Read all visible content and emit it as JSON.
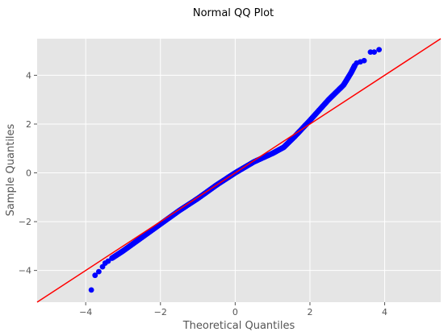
{
  "chart_data": {
    "type": "scatter",
    "title": "Normal QQ Plot",
    "xlabel": "Theoretical Quantiles",
    "ylabel": "Sample Quantiles",
    "xlim": [
      -5.3,
      5.5
    ],
    "ylim": [
      -5.3,
      5.5
    ],
    "x_ticks": [
      -4,
      -2,
      0,
      2,
      4
    ],
    "y_ticks": [
      -4,
      -2,
      0,
      2,
      4
    ],
    "x_tick_labels": [
      "−4",
      "−2",
      "0",
      "2",
      "4"
    ],
    "y_tick_labels": [
      "−4",
      "−2",
      "0",
      "2",
      "4"
    ],
    "grid": true,
    "colors": {
      "background": "#e5e5e5",
      "grid": "#ffffff",
      "points": "#0000ff",
      "reference_line": "#ff0000"
    },
    "reference_line": {
      "type": "45-degree",
      "points": [
        [
          -5.3,
          -5.3
        ],
        [
          5.5,
          5.5
        ]
      ]
    },
    "series": [
      {
        "quantile_curve": [
          [
            -3.3,
            -3.5
          ],
          [
            -3.0,
            -3.2
          ],
          [
            -2.5,
            -2.65
          ],
          [
            -2.0,
            -2.1
          ],
          [
            -1.5,
            -1.55
          ],
          [
            -1.0,
            -1.05
          ],
          [
            -0.5,
            -0.5
          ],
          [
            0.0,
            0.0
          ],
          [
            0.5,
            0.45
          ],
          [
            1.0,
            0.8
          ],
          [
            1.3,
            1.05
          ],
          [
            1.6,
            1.5
          ],
          [
            2.0,
            2.15
          ],
          [
            2.5,
            3.0
          ],
          [
            2.9,
            3.6
          ],
          [
            3.1,
            4.1
          ],
          [
            3.2,
            4.4
          ]
        ],
        "tail_points": [
          [
            -3.85,
            -4.8
          ],
          [
            -3.75,
            -4.2
          ],
          [
            -3.65,
            -4.05
          ],
          [
            -3.55,
            -3.85
          ],
          [
            -3.48,
            -3.7
          ],
          [
            -3.4,
            -3.62
          ],
          [
            3.25,
            4.5
          ],
          [
            3.35,
            4.55
          ],
          [
            3.45,
            4.6
          ],
          [
            3.62,
            4.95
          ],
          [
            3.72,
            4.95
          ],
          [
            3.85,
            5.05
          ]
        ]
      }
    ]
  }
}
